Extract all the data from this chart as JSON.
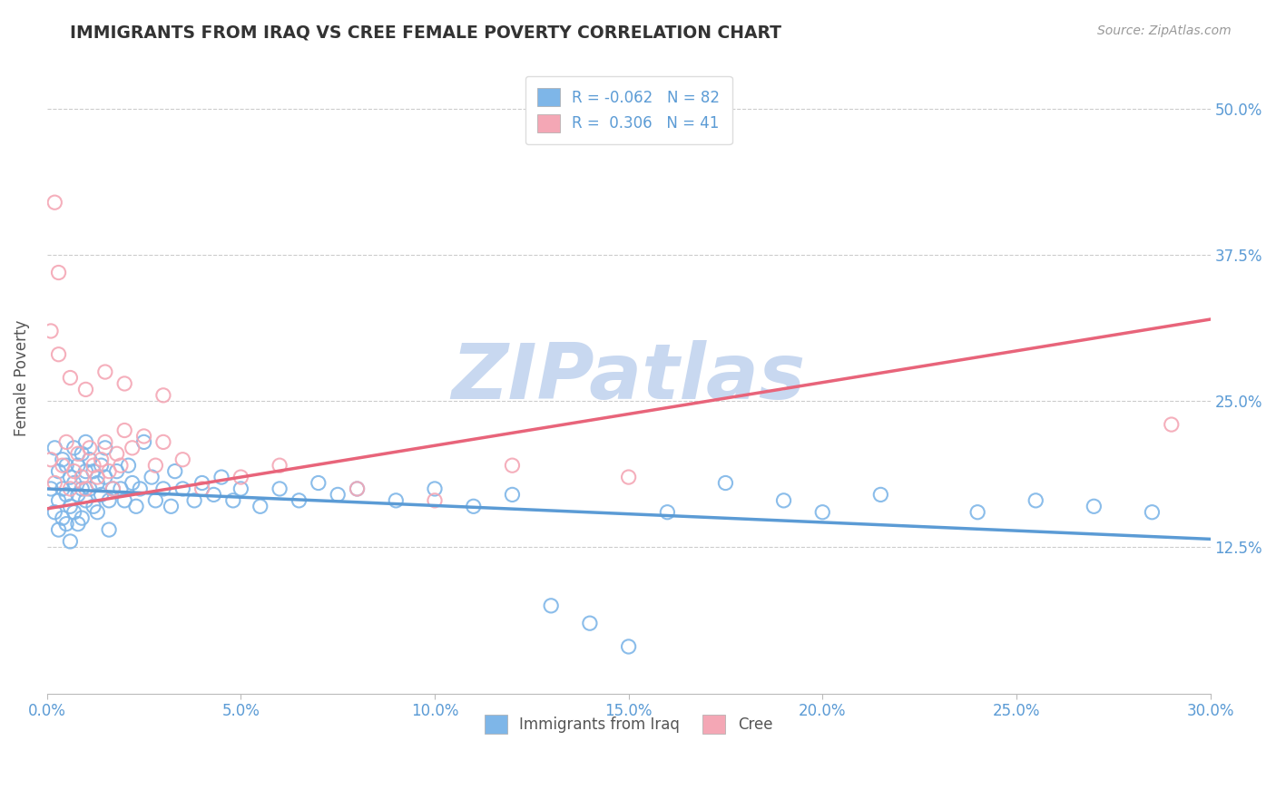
{
  "title": "IMMIGRANTS FROM IRAQ VS CREE FEMALE POVERTY CORRELATION CHART",
  "source": "Source: ZipAtlas.com",
  "ylabel": "Female Poverty",
  "xlim": [
    0.0,
    0.3
  ],
  "ylim": [
    0.0,
    0.54
  ],
  "xtick_labels": [
    "0.0%",
    "5.0%",
    "10.0%",
    "15.0%",
    "20.0%",
    "25.0%",
    "30.0%"
  ],
  "xtick_vals": [
    0.0,
    0.05,
    0.1,
    0.15,
    0.2,
    0.25,
    0.3
  ],
  "ytick_labels": [
    "12.5%",
    "25.0%",
    "37.5%",
    "50.0%"
  ],
  "ytick_vals": [
    0.125,
    0.25,
    0.375,
    0.5
  ],
  "blue_R": -0.062,
  "blue_N": 82,
  "pink_R": 0.306,
  "pink_N": 41,
  "blue_color": "#7EB6E8",
  "pink_color": "#F4A7B5",
  "blue_line_color": "#5B9BD5",
  "pink_line_color": "#E8647A",
  "watermark": "ZIPatlas",
  "watermark_color": "#C8D8F0",
  "legend_label_blue": "Immigrants from Iraq",
  "legend_label_pink": "Cree",
  "blue_line_x0": 0.0,
  "blue_line_x1": 0.3,
  "blue_line_y0": 0.175,
  "blue_line_y1": 0.132,
  "pink_line_x0": 0.0,
  "pink_line_x1": 0.3,
  "pink_line_y0": 0.158,
  "pink_line_y1": 0.32,
  "blue_scatter_x": [
    0.001,
    0.002,
    0.002,
    0.003,
    0.003,
    0.003,
    0.004,
    0.004,
    0.004,
    0.005,
    0.005,
    0.005,
    0.006,
    0.006,
    0.006,
    0.007,
    0.007,
    0.007,
    0.008,
    0.008,
    0.008,
    0.009,
    0.009,
    0.009,
    0.01,
    0.01,
    0.01,
    0.011,
    0.011,
    0.012,
    0.012,
    0.013,
    0.013,
    0.014,
    0.014,
    0.015,
    0.015,
    0.016,
    0.016,
    0.017,
    0.018,
    0.019,
    0.02,
    0.021,
    0.022,
    0.023,
    0.024,
    0.025,
    0.027,
    0.028,
    0.03,
    0.032,
    0.033,
    0.035,
    0.038,
    0.04,
    0.043,
    0.045,
    0.048,
    0.05,
    0.055,
    0.06,
    0.065,
    0.07,
    0.075,
    0.08,
    0.09,
    0.1,
    0.11,
    0.12,
    0.13,
    0.14,
    0.15,
    0.16,
    0.175,
    0.19,
    0.2,
    0.215,
    0.24,
    0.255,
    0.27,
    0.285
  ],
  "blue_scatter_y": [
    0.175,
    0.155,
    0.21,
    0.19,
    0.165,
    0.14,
    0.2,
    0.175,
    0.15,
    0.195,
    0.17,
    0.145,
    0.185,
    0.16,
    0.13,
    0.21,
    0.18,
    0.155,
    0.195,
    0.17,
    0.145,
    0.205,
    0.175,
    0.15,
    0.215,
    0.19,
    0.165,
    0.2,
    0.175,
    0.19,
    0.16,
    0.18,
    0.155,
    0.195,
    0.17,
    0.21,
    0.185,
    0.165,
    0.14,
    0.175,
    0.19,
    0.175,
    0.165,
    0.195,
    0.18,
    0.16,
    0.175,
    0.215,
    0.185,
    0.165,
    0.175,
    0.16,
    0.19,
    0.175,
    0.165,
    0.18,
    0.17,
    0.185,
    0.165,
    0.175,
    0.16,
    0.175,
    0.165,
    0.18,
    0.17,
    0.175,
    0.165,
    0.175,
    0.16,
    0.17,
    0.075,
    0.06,
    0.04,
    0.155,
    0.18,
    0.165,
    0.155,
    0.17,
    0.155,
    0.165,
    0.16,
    0.155
  ],
  "pink_scatter_x": [
    0.001,
    0.002,
    0.002,
    0.003,
    0.004,
    0.005,
    0.006,
    0.007,
    0.008,
    0.009,
    0.01,
    0.011,
    0.012,
    0.013,
    0.014,
    0.015,
    0.016,
    0.017,
    0.018,
    0.019,
    0.02,
    0.022,
    0.025,
    0.028,
    0.03,
    0.035,
    0.04,
    0.05,
    0.06,
    0.08,
    0.1,
    0.12,
    0.15,
    0.001,
    0.003,
    0.006,
    0.01,
    0.015,
    0.02,
    0.03,
    0.29
  ],
  "pink_scatter_y": [
    0.2,
    0.18,
    0.42,
    0.36,
    0.195,
    0.215,
    0.175,
    0.19,
    0.205,
    0.185,
    0.175,
    0.21,
    0.195,
    0.185,
    0.2,
    0.215,
    0.19,
    0.175,
    0.205,
    0.195,
    0.225,
    0.21,
    0.22,
    0.195,
    0.215,
    0.2,
    0.175,
    0.185,
    0.195,
    0.175,
    0.165,
    0.195,
    0.185,
    0.31,
    0.29,
    0.27,
    0.26,
    0.275,
    0.265,
    0.255,
    0.23
  ]
}
